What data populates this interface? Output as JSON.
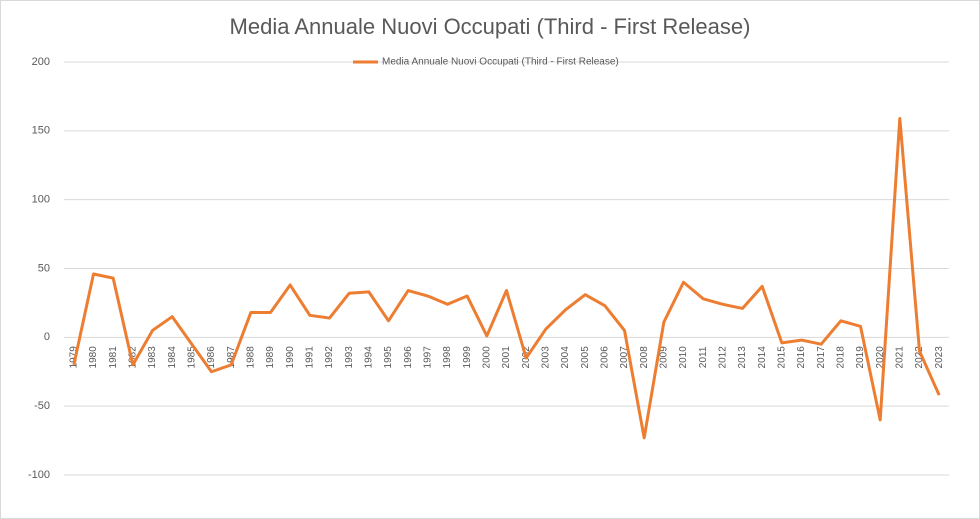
{
  "chart_data": {
    "type": "line",
    "title": "Media Annuale Nuovi Occupati (Third - First Release)",
    "categories": [
      "1979",
      "1980",
      "1981",
      "1982",
      "1983",
      "1984",
      "1985",
      "1986",
      "1987",
      "1988",
      "1989",
      "1990",
      "1991",
      "1992",
      "1993",
      "1994",
      "1995",
      "1996",
      "1997",
      "1998",
      "1999",
      "2000",
      "2001",
      "2002",
      "2003",
      "2004",
      "2005",
      "2006",
      "2007",
      "2008",
      "2009",
      "2010",
      "2011",
      "2012",
      "2013",
      "2014",
      "2015",
      "2016",
      "2017",
      "2018",
      "2019",
      "2020",
      "2021",
      "2022",
      "2023"
    ],
    "series": [
      {
        "name": "Media Annuale Nuovi Occupati (Third - First Release)",
        "color": "#ed7d31",
        "values": [
          -20,
          46,
          43,
          -20,
          5,
          15,
          -5,
          -25,
          -20,
          18,
          18,
          38,
          16,
          14,
          32,
          33,
          12,
          34,
          30,
          24,
          30,
          1,
          34,
          -15,
          6,
          20,
          31,
          23,
          5,
          -73,
          11,
          40,
          28,
          24,
          21,
          37,
          -4,
          -2,
          -5,
          12,
          8,
          -60,
          159,
          -10,
          -42
        ]
      }
    ],
    "ylim": [
      -100,
      200
    ],
    "yticks": [
      -100,
      -50,
      0,
      50,
      100,
      150,
      200
    ],
    "grid": true,
    "legend": "top"
  }
}
